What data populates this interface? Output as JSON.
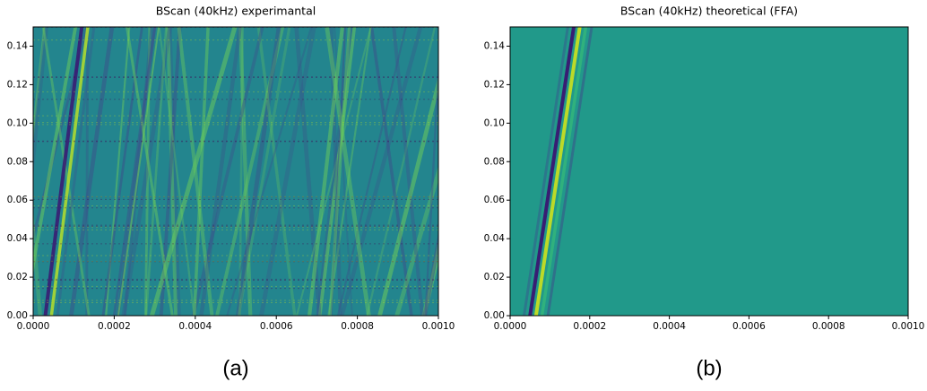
{
  "chart_data": [
    {
      "type": "heatmap",
      "title": "BScan (40kHz) experimantal",
      "caption": "(a)",
      "xlim": [
        0,
        0.001
      ],
      "ylim": [
        0,
        0.15
      ],
      "xticks": [
        {
          "value": 0,
          "label": "0.0000"
        },
        0.0002,
        0.0004,
        0.0006,
        0.0008,
        {
          "value": 0.001,
          "label": "0.0010"
        }
      ],
      "yticks": [
        {
          "value": 0,
          "label": "0.00"
        },
        0.02,
        0.04,
        0.06,
        0.08,
        {
          "value": 0.1,
          "label": "0.10"
        },
        0.12,
        0.14
      ],
      "color": "#23858e"
    },
    {
      "type": "heatmap",
      "title": "BScan (40kHz) theoretical (FFA)",
      "caption": "(b)",
      "xlim": [
        0,
        0.001
      ],
      "ylim": [
        0,
        0.15
      ],
      "xticks": [
        {
          "value": 0,
          "label": "0.0000"
        },
        0.0002,
        0.0004,
        0.0006,
        0.0008,
        {
          "value": 0.001,
          "label": "0.0010"
        }
      ],
      "yticks": [
        {
          "value": 0,
          "label": "0.00"
        },
        0.02,
        0.04,
        0.06,
        0.08,
        {
          "value": 0.1,
          "label": "0.10"
        },
        0.12,
        0.14
      ],
      "color": "#21998a"
    }
  ]
}
